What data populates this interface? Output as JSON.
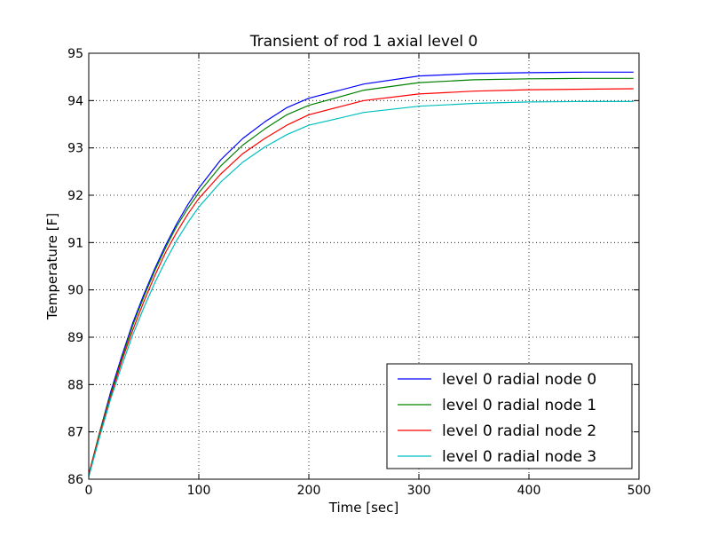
{
  "chart_data": {
    "type": "line",
    "title": "Transient of rod 1 axial level 0",
    "xlabel": "Time [sec]",
    "ylabel": "Temperature [F]",
    "xlim": [
      0,
      500
    ],
    "ylim": [
      86,
      95
    ],
    "x_ticks": [
      "0",
      "100",
      "200",
      "300",
      "400",
      "500"
    ],
    "y_ticks": [
      "86",
      "87",
      "88",
      "89",
      "90",
      "91",
      "92",
      "93",
      "94",
      "95"
    ],
    "grid": true,
    "legend_position": "lower-right",
    "series": [
      {
        "name": "level 0 radial node 0",
        "color": "#0000ff",
        "x": [
          0,
          10,
          20,
          30,
          40,
          50,
          60,
          70,
          80,
          90,
          100,
          120,
          140,
          160,
          180,
          200,
          250,
          300,
          350,
          400,
          450,
          495
        ],
        "y": [
          86.1,
          87.0,
          87.85,
          88.6,
          89.3,
          89.9,
          90.45,
          90.95,
          91.4,
          91.8,
          92.15,
          92.75,
          93.2,
          93.55,
          93.85,
          94.05,
          94.35,
          94.52,
          94.57,
          94.59,
          94.6,
          94.6
        ]
      },
      {
        "name": "level 0 radial node 1",
        "color": "#008000",
        "x": [
          0,
          10,
          20,
          30,
          40,
          50,
          60,
          70,
          80,
          90,
          100,
          120,
          140,
          160,
          180,
          200,
          250,
          300,
          350,
          400,
          450,
          495
        ],
        "y": [
          86.1,
          87.0,
          87.8,
          88.55,
          89.25,
          89.85,
          90.4,
          90.9,
          91.35,
          91.72,
          92.05,
          92.62,
          93.06,
          93.4,
          93.7,
          93.9,
          94.22,
          94.38,
          94.44,
          94.46,
          94.47,
          94.47
        ]
      },
      {
        "name": "level 0 radial node 2",
        "color": "#ff0000",
        "x": [
          0,
          10,
          20,
          30,
          40,
          50,
          60,
          70,
          80,
          90,
          100,
          120,
          140,
          160,
          180,
          200,
          250,
          300,
          350,
          400,
          450,
          495
        ],
        "y": [
          86.1,
          86.95,
          87.75,
          88.5,
          89.15,
          89.75,
          90.3,
          90.8,
          91.22,
          91.6,
          91.93,
          92.45,
          92.88,
          93.2,
          93.48,
          93.7,
          94.0,
          94.14,
          94.2,
          94.23,
          94.24,
          94.25
        ]
      },
      {
        "name": "level 0 radial node 3",
        "color": "#00bfbf",
        "x": [
          0,
          10,
          20,
          30,
          40,
          50,
          60,
          70,
          80,
          90,
          100,
          120,
          140,
          160,
          180,
          200,
          250,
          300,
          350,
          400,
          450,
          495
        ],
        "y": [
          86.05,
          86.9,
          87.7,
          88.4,
          89.05,
          89.62,
          90.15,
          90.62,
          91.05,
          91.42,
          91.75,
          92.28,
          92.7,
          93.02,
          93.28,
          93.48,
          93.75,
          93.88,
          93.94,
          93.97,
          93.98,
          93.98
        ]
      }
    ]
  }
}
